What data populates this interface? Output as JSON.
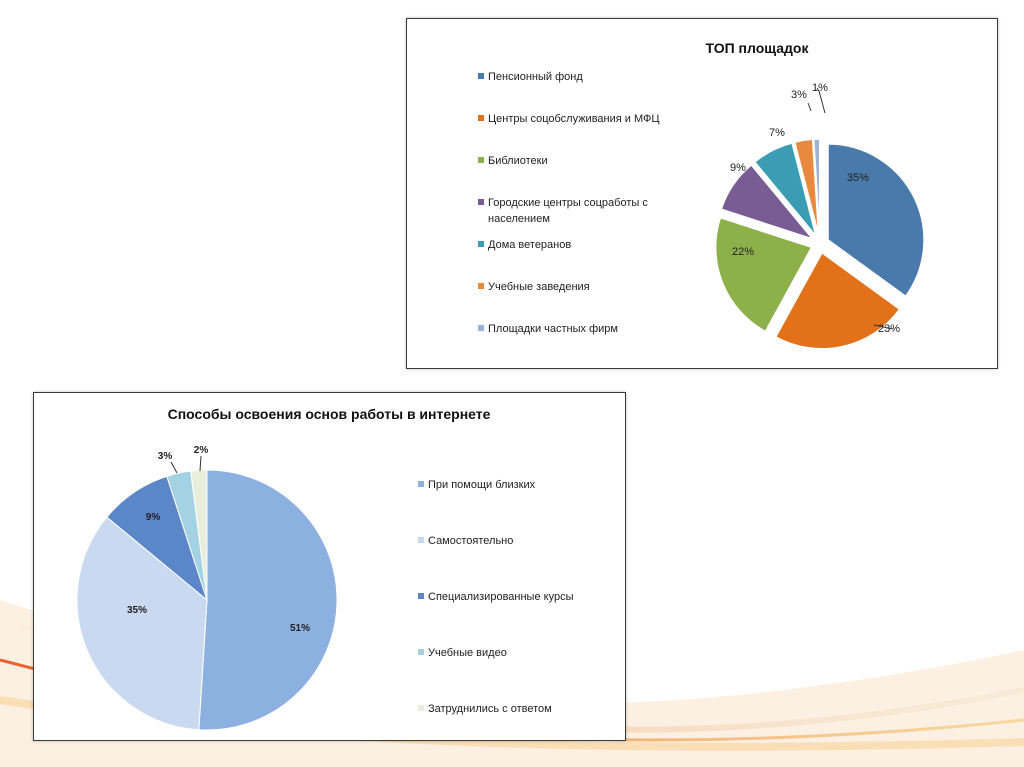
{
  "chart_data": [
    {
      "type": "pie",
      "title": "ТОП площадок",
      "categories": [
        "Пенсионный фонд",
        "Центры соцобслуживания и МФЦ",
        "Библиотеки",
        "Городские центры соцработы с населением",
        "Дома ветеранов",
        "Учебные  заведения",
        "Площадки частных фирм"
      ],
      "legend_lines": [
        [
          "Пенсионный фонд"
        ],
        [
          "Центры соцобслуживания и МФЦ"
        ],
        [
          "Библиотеки"
        ],
        [
          "Городские центры соцработы с",
          "населением"
        ],
        [
          "Дома ветеранов"
        ],
        [
          "Учебные  заведения"
        ],
        [
          "Площадки частных фирм"
        ]
      ],
      "values": [
        35,
        23,
        22,
        9,
        7,
        3,
        1
      ],
      "labels": [
        "35%",
        "23%",
        "22%",
        "9%",
        "7%",
        "3%",
        "1%"
      ],
      "colors": [
        "#4a7aab",
        "#e2711a",
        "#8db04a",
        "#7a5c94",
        "#3a9db4",
        "#e8893e",
        "#9db3d6"
      ],
      "exploded": true,
      "legend_position": "left"
    },
    {
      "type": "pie",
      "title": "Способы освоения основ работы в интернете",
      "categories": [
        "При помощи близких",
        "Самостоятельно",
        "Специализированные курсы",
        "Учебные видео",
        "Затруднились с ответом"
      ],
      "legend_lines": [
        [
          "При помощи близких"
        ],
        [
          "Самостоятельно"
        ],
        [
          "Специализированные курсы"
        ],
        [
          "Учебные видео"
        ],
        [
          "Затруднились с ответом"
        ]
      ],
      "values": [
        51,
        35,
        9,
        3,
        2
      ],
      "labels": [
        "51%",
        "35%",
        "9%",
        "3%",
        "2%"
      ],
      "colors": [
        "#8cb0e0",
        "#c9d9f0",
        "#5b86c8",
        "#a3d3e3",
        "#e7eedc"
      ],
      "exploded": false,
      "legend_position": "right"
    }
  ]
}
